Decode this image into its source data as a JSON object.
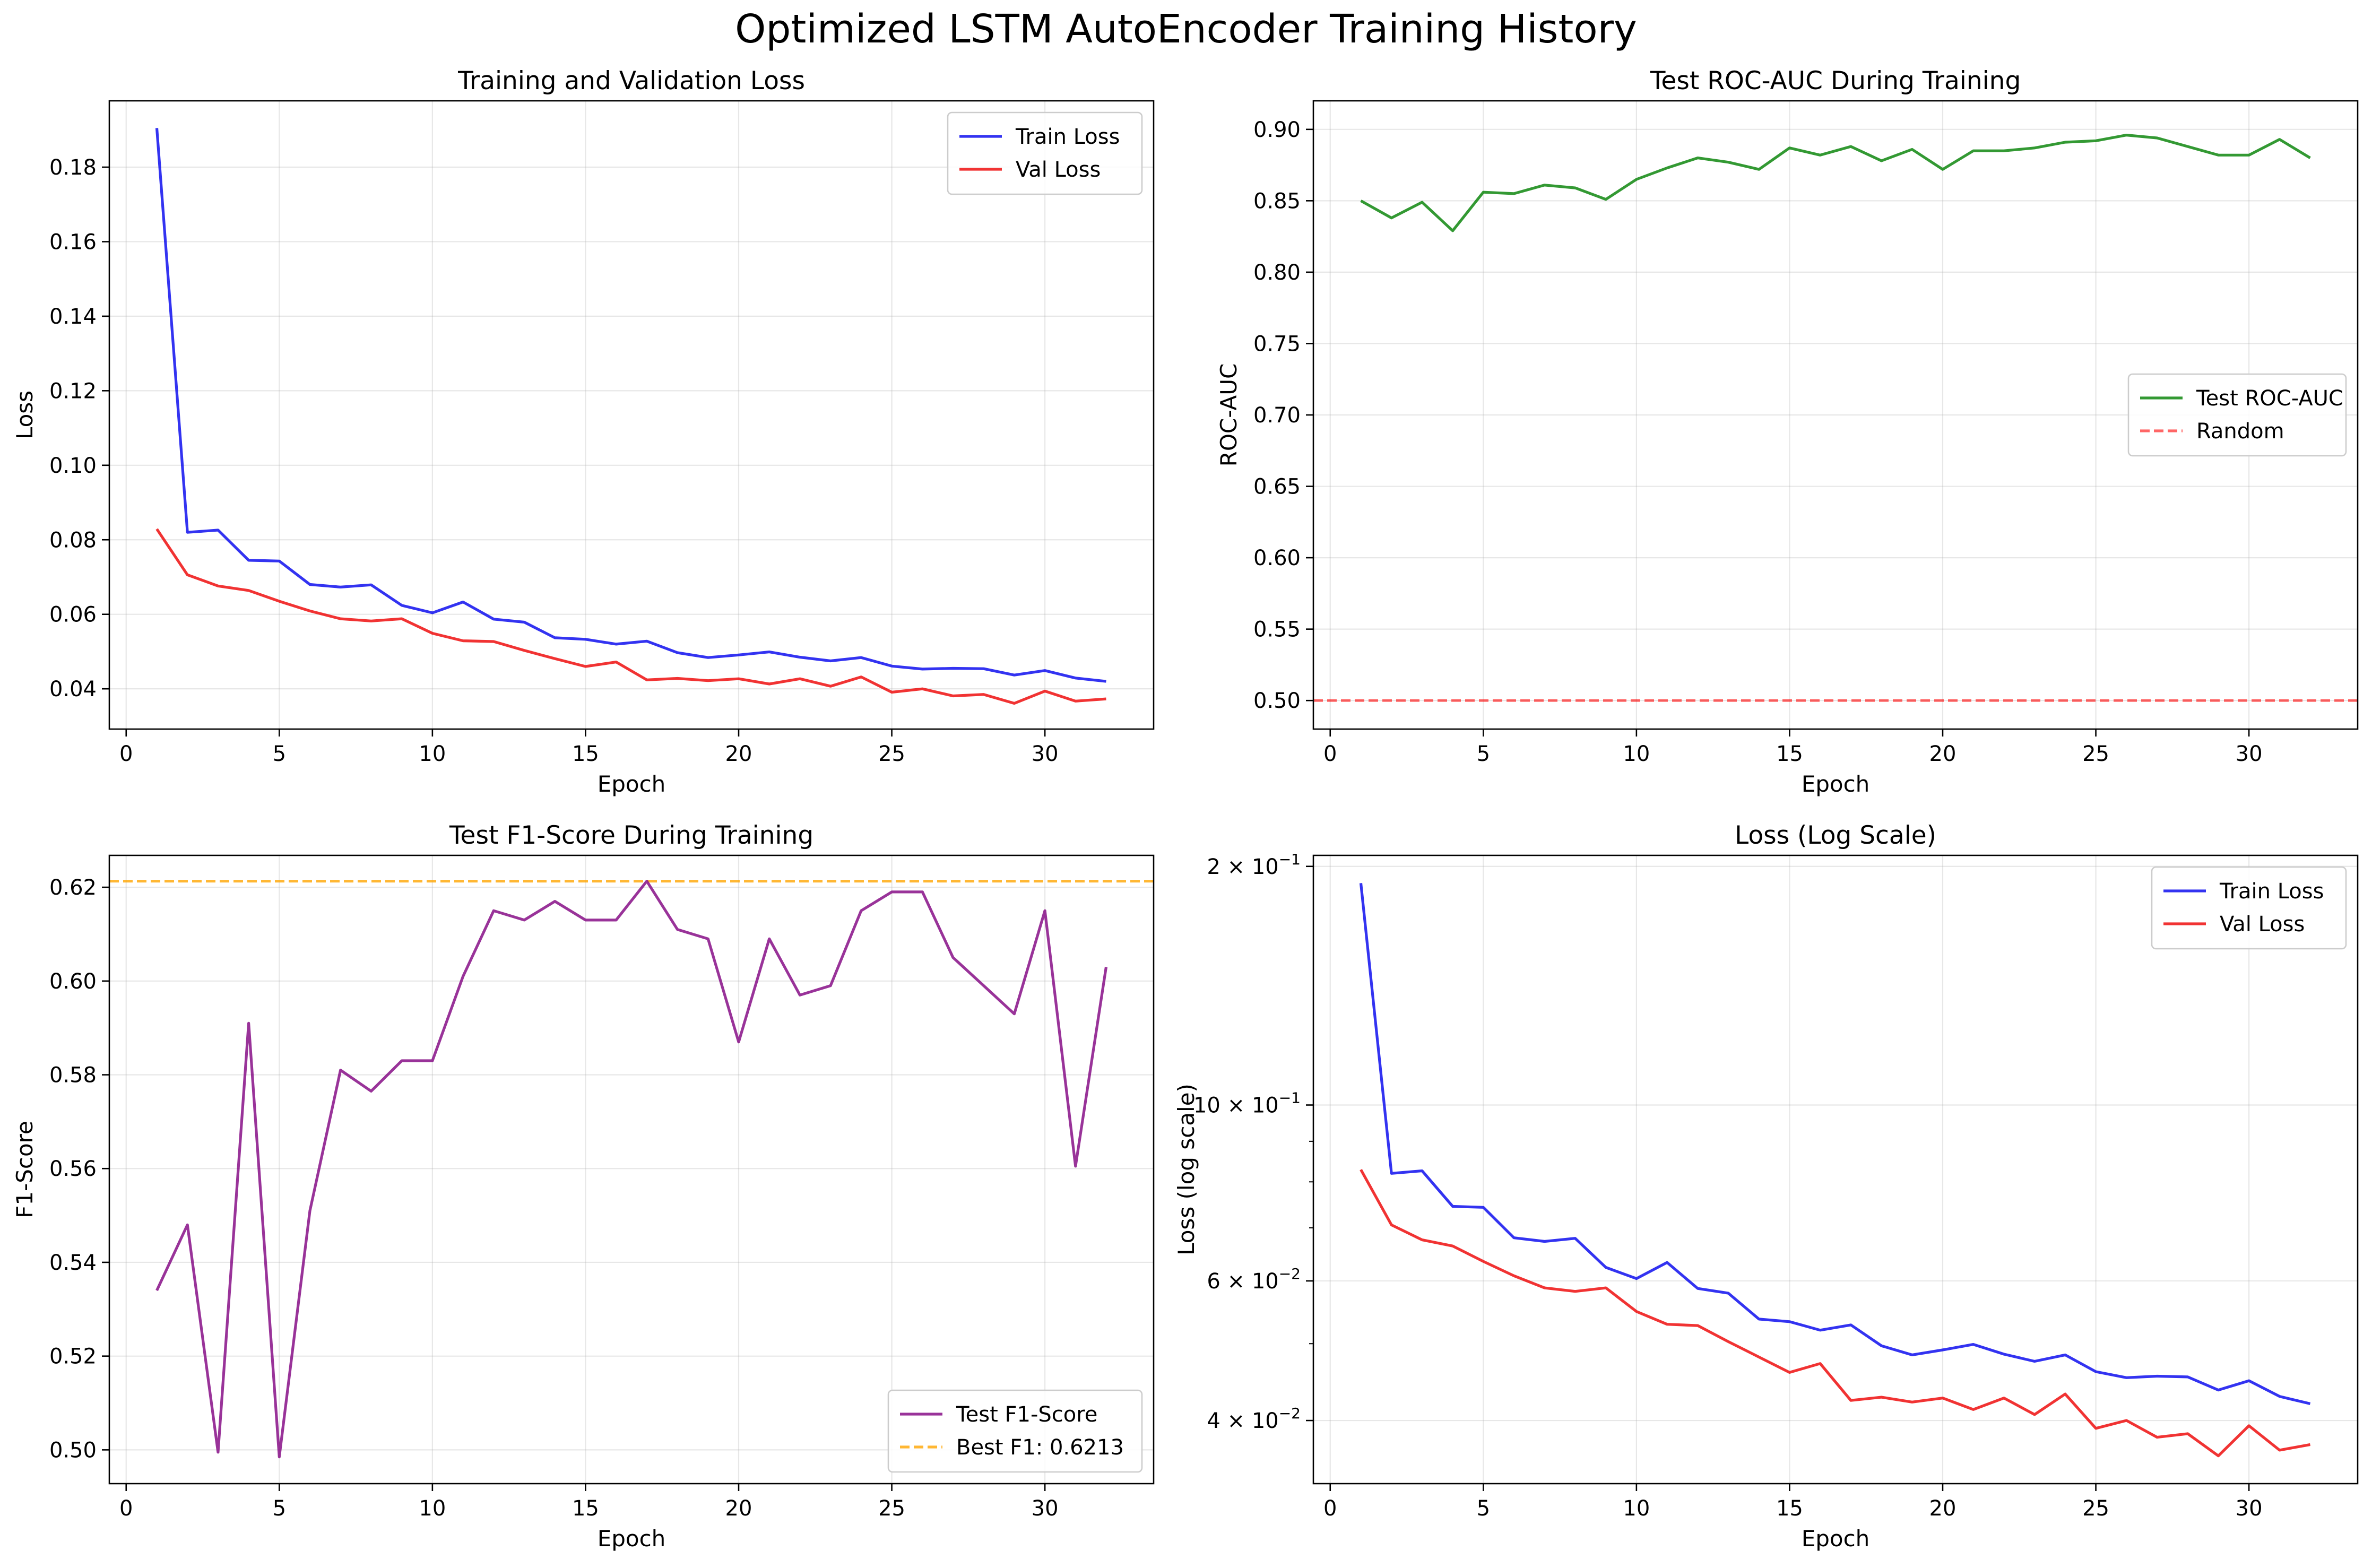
{
  "suptitle": "Optimized LSTM AutoEncoder Training History",
  "chart_data": [
    {
      "id": "loss",
      "type": "line",
      "title": "Training and Validation Loss",
      "xlabel": "Epoch",
      "ylabel": "Loss",
      "xlim": [
        -0.55,
        33.55
      ],
      "ylim": [
        0.0292,
        0.1978
      ],
      "xticks": [
        0,
        5,
        10,
        15,
        20,
        25,
        30
      ],
      "yticks": [
        0.04,
        0.06,
        0.08,
        0.1,
        0.12,
        0.14,
        0.16,
        0.18
      ],
      "ytick_labels": [
        "0.04",
        "0.06",
        "0.08",
        "0.10",
        "0.12",
        "0.14",
        "0.16",
        "0.18"
      ],
      "grid": true,
      "legend": "top-right",
      "x": [
        1,
        2,
        3,
        4,
        5,
        6,
        7,
        8,
        9,
        10,
        11,
        12,
        13,
        14,
        15,
        16,
        17,
        18,
        19,
        20,
        21,
        22,
        23,
        24,
        25,
        26,
        27,
        28,
        29,
        30,
        31,
        32
      ],
      "series": [
        {
          "name": "Train Loss",
          "color": "#0000ee",
          "values": [
            0.1905,
            0.082,
            0.0826,
            0.0745,
            0.0743,
            0.068,
            0.0673,
            0.0679,
            0.0624,
            0.0604,
            0.0633,
            0.0587,
            0.0579,
            0.0537,
            0.0533,
            0.052,
            0.0528,
            0.0497,
            0.0484,
            0.0491,
            0.0499,
            0.0485,
            0.0475,
            0.0484,
            0.0461,
            0.0453,
            0.0455,
            0.0454,
            0.0437,
            0.0449,
            0.0429,
            0.042
          ]
        },
        {
          "name": "Val Loss",
          "color": "#ee0000",
          "values": [
            0.0829,
            0.0706,
            0.0676,
            0.0664,
            0.0635,
            0.0609,
            0.0588,
            0.0582,
            0.0588,
            0.0549,
            0.0529,
            0.0527,
            0.0503,
            0.0481,
            0.046,
            0.0472,
            0.0424,
            0.0428,
            0.0422,
            0.0427,
            0.0413,
            0.0427,
            0.0407,
            0.0432,
            0.0391,
            0.04,
            0.0381,
            0.0385,
            0.0361,
            0.0394,
            0.0367,
            0.0373
          ]
        }
      ]
    },
    {
      "id": "roc",
      "type": "line",
      "title": "Test ROC-AUC During Training",
      "xlabel": "Epoch",
      "ylabel": "ROC-AUC",
      "xlim": [
        -0.55,
        33.55
      ],
      "ylim": [
        0.48,
        0.92
      ],
      "xticks": [
        0,
        5,
        10,
        15,
        20,
        25,
        30
      ],
      "yticks": [
        0.5,
        0.55,
        0.6,
        0.65,
        0.7,
        0.75,
        0.8,
        0.85,
        0.9
      ],
      "ytick_labels": [
        "0.50",
        "0.55",
        "0.60",
        "0.65",
        "0.70",
        "0.75",
        "0.80",
        "0.85",
        "0.90"
      ],
      "grid": true,
      "legend": "center-right",
      "x": [
        1,
        2,
        3,
        4,
        5,
        6,
        7,
        8,
        9,
        10,
        11,
        12,
        13,
        14,
        15,
        16,
        17,
        18,
        19,
        20,
        21,
        22,
        23,
        24,
        25,
        26,
        27,
        28,
        29,
        30,
        31,
        32
      ],
      "series": [
        {
          "name": "Test ROC-AUC",
          "color": "#008000",
          "values": [
            0.85,
            0.838,
            0.849,
            0.829,
            0.856,
            0.855,
            0.861,
            0.859,
            0.851,
            0.865,
            0.873,
            0.88,
            0.877,
            0.872,
            0.887,
            0.882,
            0.888,
            0.878,
            0.886,
            0.872,
            0.885,
            0.885,
            0.887,
            0.891,
            0.892,
            0.896,
            0.894,
            0.888,
            0.882,
            0.882,
            0.893,
            0.88
          ]
        }
      ],
      "hlines": [
        {
          "name": "Random",
          "y": 0.5,
          "color": "#ff0000",
          "opacity": 0.6,
          "dash": true
        }
      ]
    },
    {
      "id": "f1",
      "type": "line",
      "title": "Test F1-Score During Training",
      "xlabel": "Epoch",
      "ylabel": "F1-Score",
      "xlim": [
        -0.55,
        33.55
      ],
      "ylim": [
        0.4928,
        0.6268
      ],
      "xticks": [
        0,
        5,
        10,
        15,
        20,
        25,
        30
      ],
      "yticks": [
        0.5,
        0.52,
        0.54,
        0.56,
        0.58,
        0.6,
        0.62
      ],
      "ytick_labels": [
        "0.50",
        "0.52",
        "0.54",
        "0.56",
        "0.58",
        "0.60",
        "0.62"
      ],
      "grid": true,
      "legend": "bottom-right",
      "x": [
        1,
        2,
        3,
        4,
        5,
        6,
        7,
        8,
        9,
        10,
        11,
        12,
        13,
        14,
        15,
        16,
        17,
        18,
        19,
        20,
        21,
        22,
        23,
        24,
        25,
        26,
        27,
        28,
        29,
        30,
        31,
        32
      ],
      "series": [
        {
          "name": "Test F1-Score",
          "color": "#800080",
          "values": [
            0.534,
            0.548,
            0.4995,
            0.591,
            0.4985,
            0.551,
            0.581,
            0.5765,
            0.583,
            0.583,
            0.601,
            0.615,
            0.613,
            0.617,
            0.613,
            0.613,
            0.6213,
            0.611,
            0.609,
            0.587,
            0.609,
            0.597,
            0.599,
            0.615,
            0.619,
            0.619,
            0.605,
            0.599,
            0.593,
            0.615,
            0.5605,
            0.603
          ]
        }
      ],
      "hlines": [
        {
          "name": "Best F1: 0.6213",
          "y": 0.6213,
          "color": "#ffa500",
          "opacity": 0.8,
          "dash": true
        }
      ]
    },
    {
      "id": "logloss",
      "type": "line",
      "title": "Loss (Log Scale)",
      "xlabel": "Epoch",
      "ylabel": "Loss (log scale)",
      "yscale": "log",
      "xlim": [
        -0.55,
        33.55
      ],
      "ylim": [
        0.0333,
        0.2065
      ],
      "xticks": [
        0,
        5,
        10,
        15,
        20,
        25,
        30
      ],
      "yticks": [
        0.04,
        0.06,
        0.1,
        0.2
      ],
      "ytick_labels": [
        {
          "mant": "4",
          "exp": "−2"
        },
        {
          "mant": "6",
          "exp": "−2"
        },
        {
          "mant": "10",
          "exp": "−1"
        },
        {
          "mant": "2",
          "exp": "−1"
        }
      ],
      "yminor": [
        0.05,
        0.07,
        0.08,
        0.09
      ],
      "grid": true,
      "legend": "top-right",
      "x": [
        1,
        2,
        3,
        4,
        5,
        6,
        7,
        8,
        9,
        10,
        11,
        12,
        13,
        14,
        15,
        16,
        17,
        18,
        19,
        20,
        21,
        22,
        23,
        24,
        25,
        26,
        27,
        28,
        29,
        30,
        31,
        32
      ],
      "series": [
        {
          "name": "Train Loss",
          "color": "#0000ee",
          "values": [
            0.1905,
            0.082,
            0.0826,
            0.0745,
            0.0743,
            0.068,
            0.0673,
            0.0679,
            0.0624,
            0.0604,
            0.0633,
            0.0587,
            0.0579,
            0.0537,
            0.0533,
            0.052,
            0.0528,
            0.0497,
            0.0484,
            0.0491,
            0.0499,
            0.0485,
            0.0475,
            0.0484,
            0.0461,
            0.0453,
            0.0455,
            0.0454,
            0.0437,
            0.0449,
            0.0429,
            0.042
          ]
        },
        {
          "name": "Val Loss",
          "color": "#ee0000",
          "values": [
            0.0829,
            0.0706,
            0.0676,
            0.0664,
            0.0635,
            0.0609,
            0.0588,
            0.0582,
            0.0588,
            0.0549,
            0.0529,
            0.0527,
            0.0503,
            0.0481,
            0.046,
            0.0472,
            0.0424,
            0.0428,
            0.0422,
            0.0427,
            0.0413,
            0.0427,
            0.0407,
            0.0432,
            0.0391,
            0.04,
            0.0381,
            0.0385,
            0.0361,
            0.0394,
            0.0367,
            0.0373
          ]
        }
      ]
    }
  ]
}
